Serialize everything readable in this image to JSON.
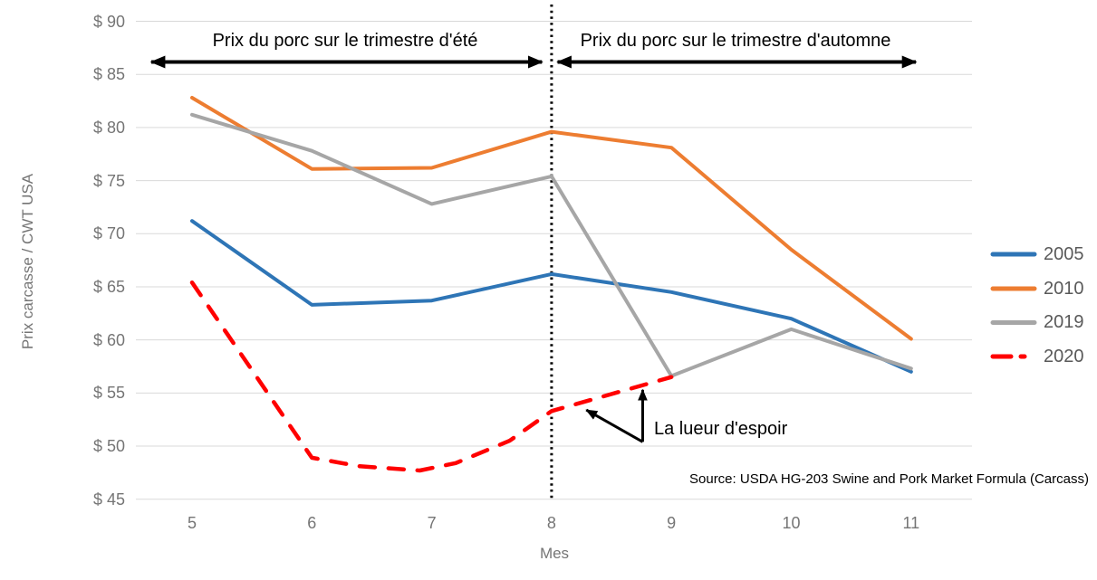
{
  "chart_data": {
    "type": "line",
    "xlabel": "Mes",
    "ylabel": "Prix carcasse / CWT USA",
    "x_categories": [
      5,
      6,
      7,
      8,
      9,
      10,
      11
    ],
    "ylim": [
      45,
      90
    ],
    "ytick_step": 5,
    "ytick_prefix": "$ ",
    "grid": "horizontal",
    "legend_position": "right",
    "series": [
      {
        "name": "2005",
        "color": "#2E75B6",
        "style": "solid",
        "points": [
          [
            5,
            71.2
          ],
          [
            6,
            63.3
          ],
          [
            7,
            63.7
          ],
          [
            8,
            66.2
          ],
          [
            9,
            64.5
          ],
          [
            10,
            62.0
          ],
          [
            11,
            57.0
          ]
        ]
      },
      {
        "name": "2010",
        "color": "#ED7D31",
        "style": "solid",
        "points": [
          [
            5,
            82.8
          ],
          [
            6,
            76.1
          ],
          [
            7,
            76.2
          ],
          [
            8,
            79.6
          ],
          [
            9,
            78.1
          ],
          [
            10,
            68.5
          ],
          [
            11,
            60.1
          ]
        ]
      },
      {
        "name": "2019",
        "color": "#A6A6A6",
        "style": "solid",
        "points": [
          [
            5,
            81.2
          ],
          [
            6,
            77.8
          ],
          [
            7,
            72.8
          ],
          [
            8,
            75.4
          ],
          [
            9,
            56.6
          ],
          [
            10,
            61.0
          ],
          [
            11,
            57.3
          ]
        ]
      },
      {
        "name": "2020",
        "color": "#FF0000",
        "style": "dashed",
        "points": [
          [
            5,
            65.4
          ],
          [
            6,
            48.9
          ],
          [
            6.4,
            48.1
          ],
          [
            6.9,
            47.7
          ],
          [
            7.2,
            48.4
          ],
          [
            7.65,
            50.5
          ],
          [
            8,
            53.3
          ],
          [
            9,
            56.5
          ]
        ]
      }
    ],
    "annotations": {
      "divider_month": 8,
      "summer": {
        "label": "Prix du porc sur le trimestre d'été",
        "arrow_from_month": 4.66,
        "arrow_to_month": 7.92
      },
      "autumn": {
        "label": "Prix du porc sur le trimestre d'automne",
        "arrow_from_month": 8.05,
        "arrow_to_month": 11.04
      },
      "hope": {
        "label": "La lueur d'espoir",
        "arrow_origin": [
          8.76,
          50.4
        ],
        "arrow_tips": [
          [
            8.76,
            55.3
          ],
          [
            8.29,
            53.4
          ]
        ]
      },
      "source": "Source: USDA HG-203 Swine and Pork Market Formula (Carcass)"
    },
    "colors": {
      "gridline": "#D9D9D9",
      "axis_text": "#757575",
      "legend_text": "#595959",
      "annotation": "#000000"
    }
  }
}
